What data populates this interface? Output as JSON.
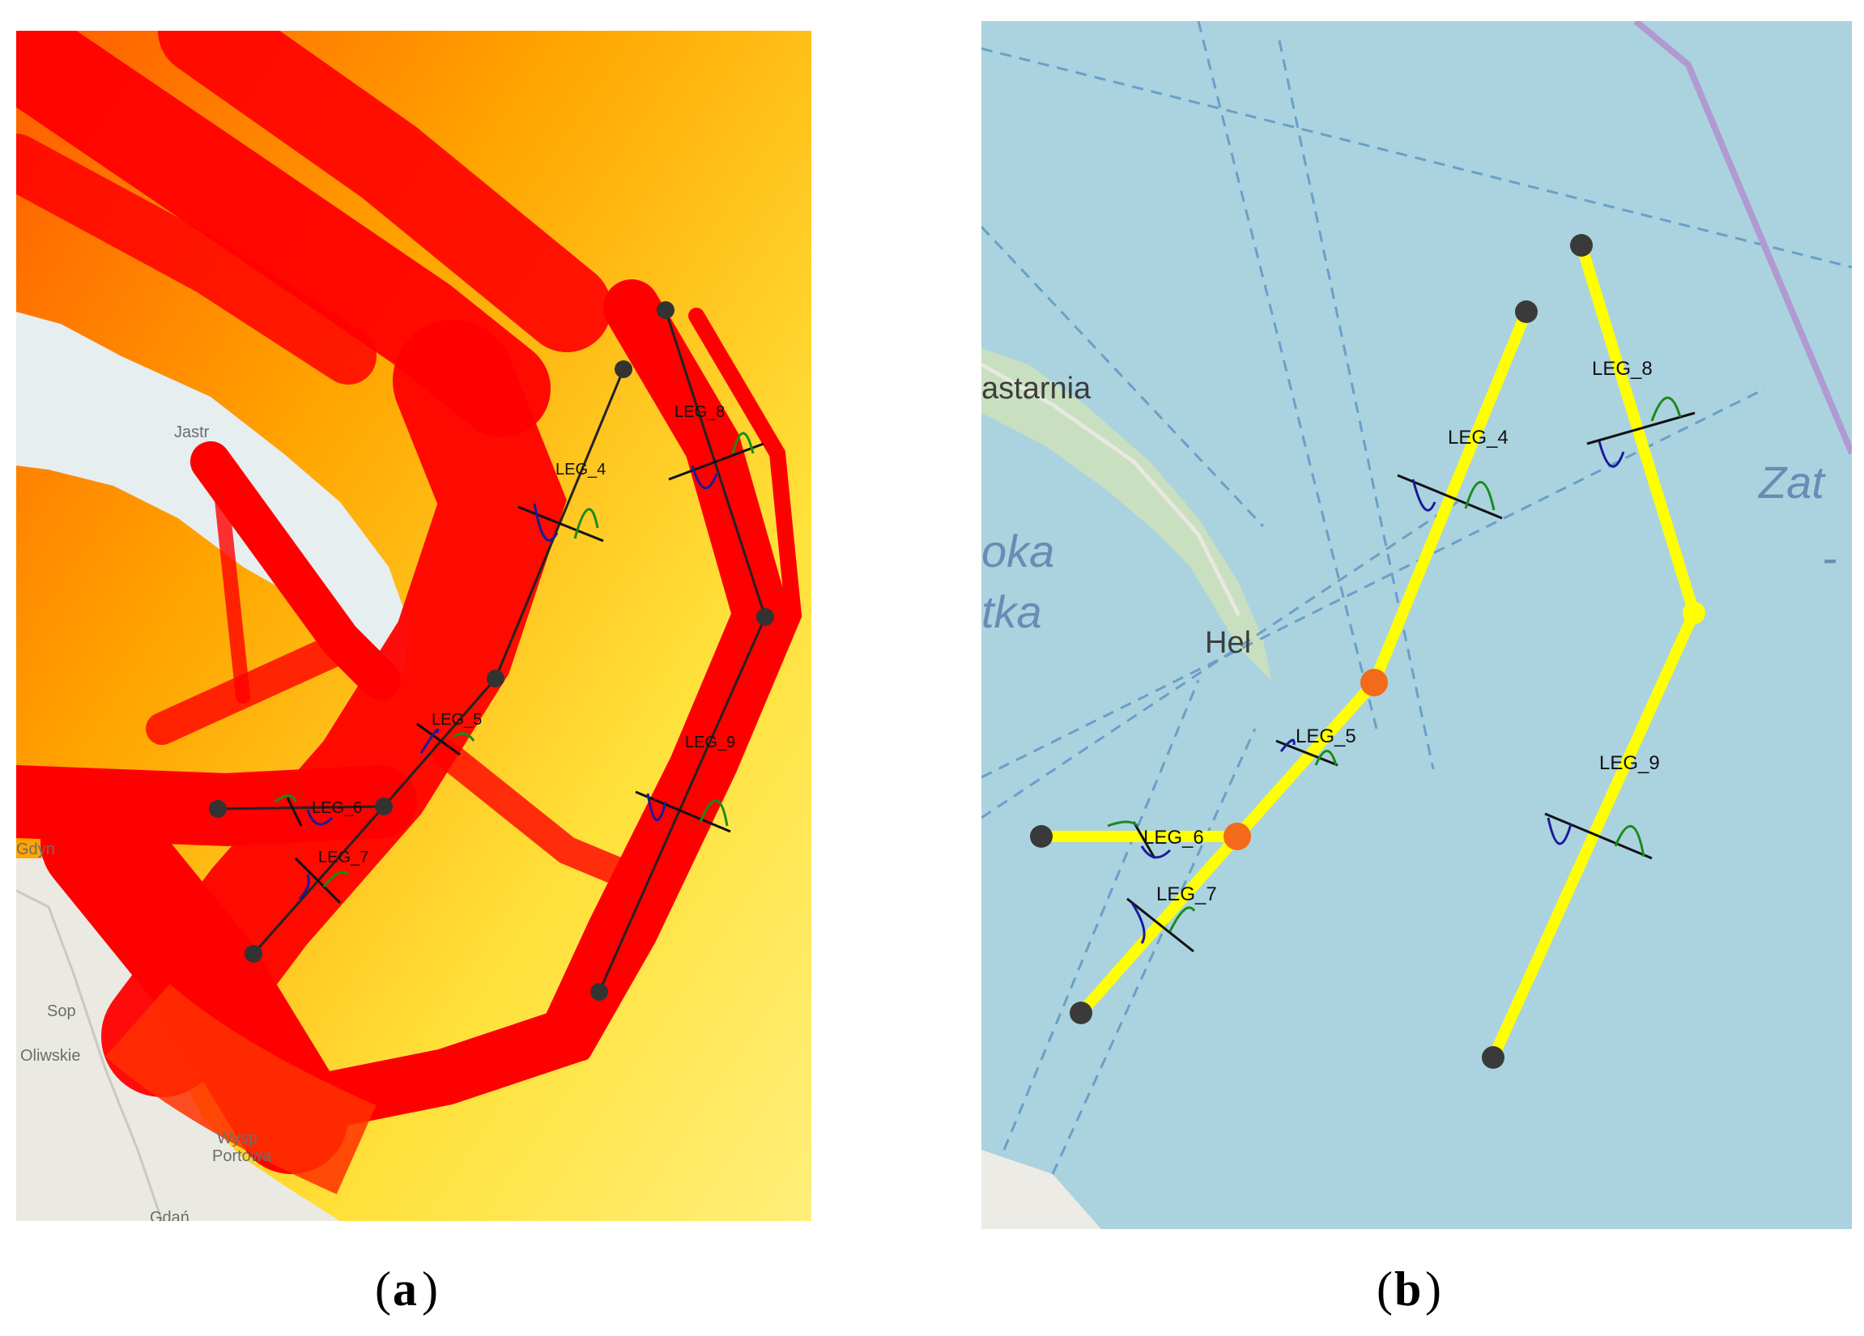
{
  "panels": [
    {
      "id": "a",
      "caption_letter": "a",
      "background": "ship traffic density heatmap",
      "place_labels": [
        "Jastr",
        "Gdyn",
        "Sop",
        "Oliwskie",
        "Wysp",
        "Portowa",
        "Gdań"
      ],
      "legs": [
        "LEG_4",
        "LEG_5",
        "LEG_6",
        "LEG_7",
        "LEG_8",
        "LEG_9"
      ]
    },
    {
      "id": "b",
      "caption_letter": "b",
      "background": "base map",
      "place_labels": [
        "astarnia",
        "Hel"
      ],
      "italic_labels": [
        "oka",
        "tka",
        "Zat",
        "-"
      ],
      "legs": [
        "LEG_4",
        "LEG_5",
        "LEG_6",
        "LEG_7",
        "LEG_8",
        "LEG_9"
      ]
    }
  ],
  "colors": {
    "heat_red": "#ff0000",
    "heat_orange": "#ff9900",
    "heat_yellow": "#ffee33",
    "sea": "#aad3df",
    "route_yellow": "#ffff00",
    "waypoint": "#333333",
    "junction": "#f36a1a",
    "dist_blue": "#1a1a99",
    "dist_green": "#1a8a1a"
  }
}
